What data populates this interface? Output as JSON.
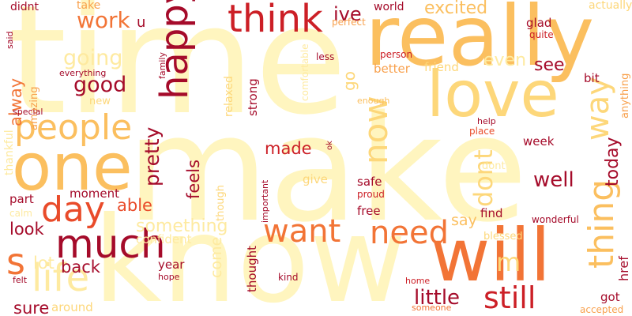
{
  "words": {
    "time": "time",
    "make": "make",
    "know": "know",
    "really": "really",
    "love": "love",
    "one": "one",
    "will": "will",
    "think": "think",
    "people": "people",
    "much": "much",
    "day": "day",
    "want": "want",
    "need": "need",
    "still": "still",
    "life": "life",
    "s": "s",
    "ive": "ive",
    "excited": "excited",
    "work": "work",
    "u": "u",
    "going": "going",
    "good": "good",
    "alway": "alway",
    "amazing": "amazing",
    "new": "new",
    "happy": "happy",
    "now": "now",
    "go": "go",
    "better": "better",
    "friend": "friend",
    "world": "world",
    "perfect": "perfect",
    "less": "less",
    "person": "person",
    "even": "even",
    "see": "see",
    "glad": "glad",
    "quite": "quite",
    "actually": "actually",
    "way": "way",
    "anything": "anything",
    "bit": "bit",
    "thing": "thing",
    "week": "week",
    "today": "today",
    "well": "well",
    "dont": "dont",
    "help": "help",
    "place": "place",
    "find": "find",
    "say": "say",
    "wonderful": "wonderful",
    "blessed": "blessed",
    "m": "m",
    "href": "href",
    "got": "got",
    "accepted": "accepted",
    "little": "little",
    "home": "home",
    "someone": "someone",
    "pretty": "pretty",
    "feels": "feels",
    "made": "made",
    "strong": "strong",
    "relaxed": "relaxed",
    "comfortable": "comfortable",
    "enough": "enough",
    "family": "family",
    "everything": "everything",
    "said": "said",
    "didnt": "didnt",
    "take": "take",
    "special": "special",
    "thankful": "thankful",
    "ok": "ok",
    "give": "give",
    "safe": "safe",
    "proud": "proud",
    "free": "free",
    "important": "important",
    "though": "though",
    "something": "something",
    "confident": "confident",
    "come": "come",
    "thought": "thought",
    "kind": "kind",
    "hope": "hope",
    "year": "year",
    "back": "back",
    "able": "able",
    "moment": "moment",
    "look": "look",
    "part": "part",
    "calm": "calm",
    "lot": "lot",
    "sure": "sure",
    "felt": "felt",
    "around": "around"
  },
  "palette": {
    "background": "#ffffff",
    "very_pale_yellow": "#fff5bf",
    "pale_yellow": "#feeaa0",
    "light_gold": "#fdd77a",
    "light_orange": "#fbbf5f",
    "orange": "#f8a04c",
    "deep_orange": "#f27436",
    "red_orange": "#e94b2a",
    "red": "#cc1f26",
    "crimson": "#a50b2a"
  }
}
